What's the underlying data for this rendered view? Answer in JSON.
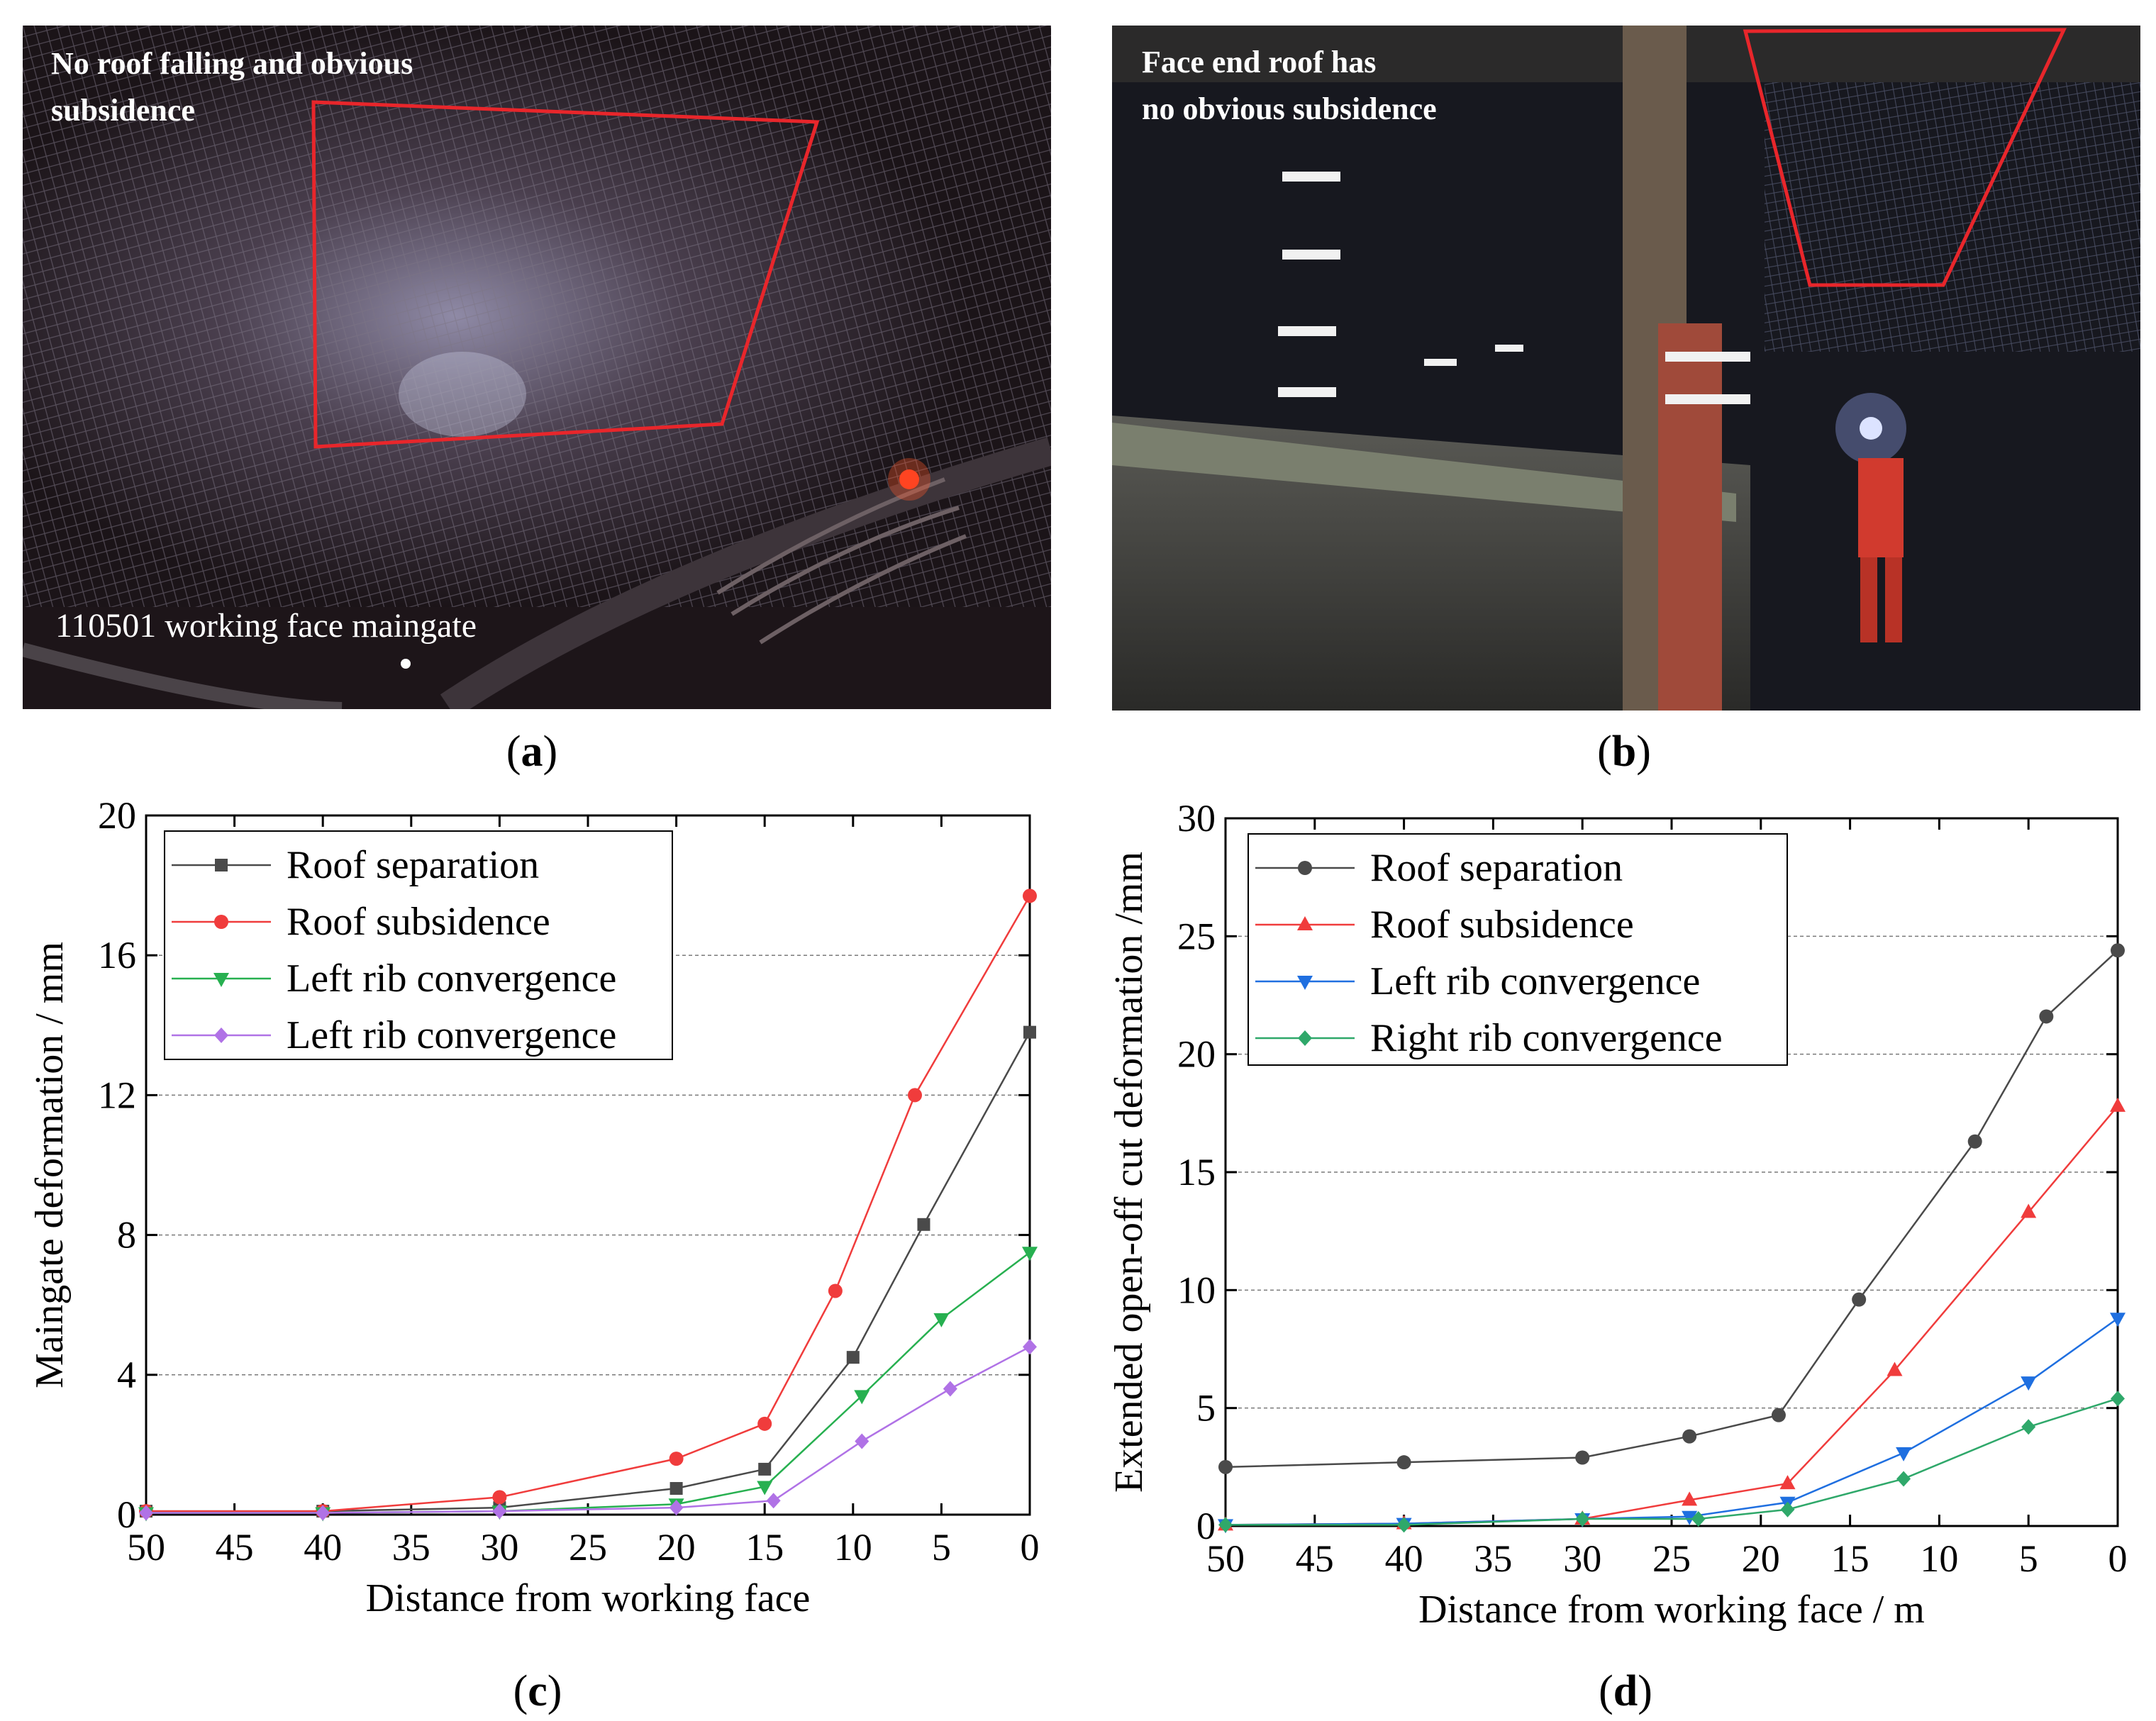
{
  "panels": {
    "a": {
      "caption_letter": "a",
      "overlay_line1": "No roof falling and obvious",
      "overlay_line2": "subsidence",
      "bottom_label": "110501 working face maingate"
    },
    "b": {
      "caption_letter": "b",
      "overlay_line1": "Face end roof  has",
      "overlay_line2": "no obvious subsidence"
    },
    "c": {
      "caption_letter": "c"
    },
    "d": {
      "caption_letter": "d"
    }
  },
  "colors": {
    "black": "#4a4a4a",
    "red": "#f03c3c",
    "green": "#27b050",
    "purple": "#b072e6",
    "blue": "#1f6fe0",
    "teal_green": "#2fa86a",
    "highlight_box": "#e8262b"
  },
  "chart_data": [
    {
      "id": "c",
      "type": "line",
      "xlabel": "Distance from working face",
      "ylabel": "Maingate deformation / mm",
      "xlim": [
        50,
        0
      ],
      "ylim": [
        0,
        20
      ],
      "xticks": [
        50,
        45,
        40,
        35,
        30,
        25,
        20,
        15,
        10,
        5,
        0
      ],
      "yticks": [
        0,
        4,
        8,
        12,
        16,
        20
      ],
      "grid": "horizontal dashed",
      "legend_position": "top-left",
      "series": [
        {
          "name": "Roof separation",
          "color": "#4a4a4a",
          "marker": "square",
          "x": [
            50,
            40,
            30,
            20,
            15,
            10,
            6,
            0
          ],
          "y": [
            0.1,
            0.1,
            0.2,
            0.75,
            1.3,
            4.5,
            8.3,
            13.8
          ]
        },
        {
          "name": "Roof subsidence",
          "color": "#f03c3c",
          "marker": "circle",
          "x": [
            50,
            40,
            30,
            20,
            15,
            11,
            6.5,
            0
          ],
          "y": [
            0.1,
            0.1,
            0.5,
            1.6,
            2.6,
            6.4,
            12.0,
            17.7
          ]
        },
        {
          "name": "Left rib convergence",
          "color": "#27b050",
          "marker": "triangle-down",
          "x": [
            50,
            40,
            30,
            20,
            15,
            9.5,
            5,
            0
          ],
          "y": [
            0.05,
            0.05,
            0.1,
            0.3,
            0.8,
            3.4,
            5.6,
            7.5
          ]
        },
        {
          "name": "Left rib convergence",
          "color": "#b072e6",
          "marker": "diamond",
          "x": [
            50,
            40,
            30,
            20,
            14.5,
            9.5,
            4.5,
            0
          ],
          "y": [
            0.05,
            0.05,
            0.1,
            0.2,
            0.4,
            2.1,
            3.6,
            4.8
          ]
        }
      ]
    },
    {
      "id": "d",
      "type": "line",
      "xlabel": "Distance from working face / m",
      "ylabel": "Extended open-off cut deformation /mm",
      "xlim": [
        50,
        0
      ],
      "ylim": [
        0,
        30
      ],
      "xticks": [
        50,
        45,
        40,
        35,
        30,
        25,
        20,
        15,
        10,
        5,
        0
      ],
      "yticks": [
        0,
        5,
        10,
        15,
        20,
        25,
        30
      ],
      "grid": "horizontal dashed",
      "legend_position": "top-left",
      "series": [
        {
          "name": "Roof separation",
          "color": "#4a4a4a",
          "marker": "circle",
          "x": [
            50,
            40,
            30,
            24,
            19,
            14.5,
            8,
            4,
            0
          ],
          "y": [
            2.5,
            2.7,
            2.9,
            3.8,
            4.7,
            9.6,
            16.3,
            21.6,
            24.4
          ]
        },
        {
          "name": "Roof subsidence",
          "color": "#f03c3c",
          "marker": "triangle-up",
          "x": [
            50,
            40,
            30,
            24,
            18.5,
            12.5,
            5,
            0
          ],
          "y": [
            0.05,
            0.1,
            0.3,
            1.1,
            1.8,
            6.6,
            13.3,
            17.8
          ]
        },
        {
          "name": "Left rib convergence",
          "color": "#1f6fe0",
          "marker": "triangle-down",
          "x": [
            50,
            40,
            30,
            24,
            18.5,
            12,
            5,
            0
          ],
          "y": [
            0.05,
            0.1,
            0.3,
            0.4,
            1.0,
            3.1,
            6.1,
            8.8
          ]
        },
        {
          "name": "Right rib convergence",
          "color": "#2fa86a",
          "marker": "diamond",
          "x": [
            50,
            40,
            30,
            23.5,
            18.5,
            12,
            5,
            0
          ],
          "y": [
            0.05,
            0.05,
            0.3,
            0.3,
            0.7,
            2.0,
            4.2,
            5.4
          ]
        }
      ]
    }
  ]
}
